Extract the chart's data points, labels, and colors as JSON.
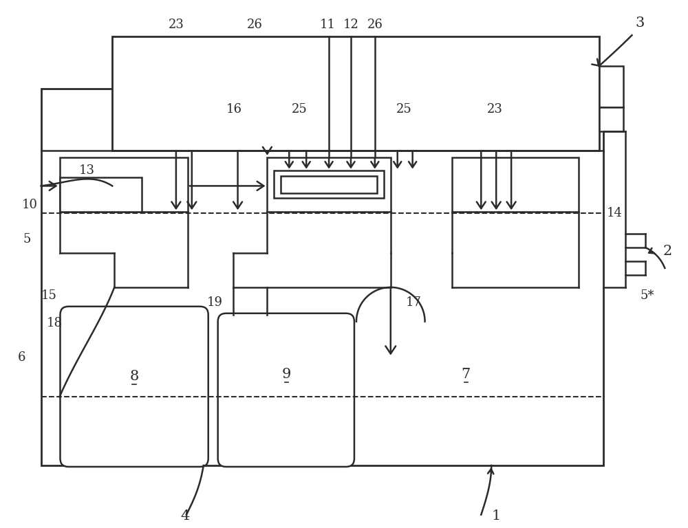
{
  "bg_color": "#ffffff",
  "line_color": "#2a2a2a",
  "fig_width": 10.0,
  "fig_height": 7.68,
  "lw": 1.8
}
